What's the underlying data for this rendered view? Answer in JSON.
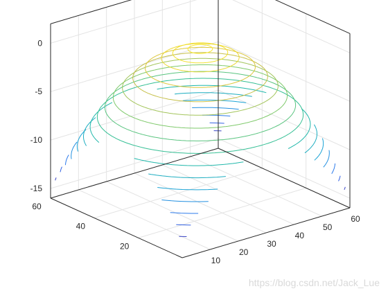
{
  "chart_data": {
    "type": "contour3",
    "description_formula": "z = -((x-30)^2 + (y-30)^2) / 120, contour levels drawn at their height",
    "x_ticks": [
      "10",
      "20",
      "30",
      "40",
      "50",
      "60"
    ],
    "y_ticks": [
      "20",
      "40",
      "60"
    ],
    "z_ticks": [
      "0",
      "-5",
      "-10",
      "-15"
    ],
    "xlim": [
      0,
      60
    ],
    "ylim": [
      0,
      60
    ],
    "zlim": [
      -16,
      2
    ],
    "levels": [
      -15,
      -14,
      -13,
      -12,
      -11,
      -10,
      -9,
      -8,
      -7,
      -6,
      -5,
      -4,
      -3,
      -2,
      -1,
      -0.5,
      -0.1
    ],
    "colormap": [
      "#3e26a8",
      "#2f6ff0",
      "#1aa3d6",
      "#20bca0",
      "#7cc96b",
      "#d4bd41",
      "#f9e82b"
    ],
    "grid": true,
    "box": true
  },
  "watermark": "https://blog.csdn.net/Jack_Lue"
}
